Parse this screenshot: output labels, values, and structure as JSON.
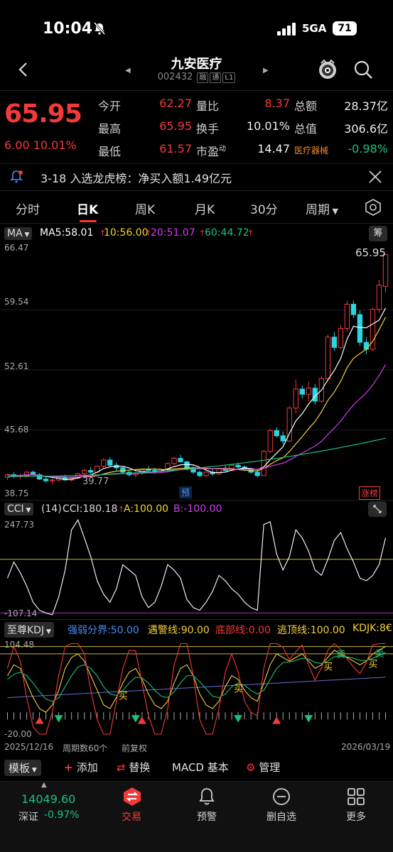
{
  "status_bar": {
    "time": "10:04",
    "network": "5GA",
    "battery": "71"
  },
  "header": {
    "title": "九安医疗",
    "code": "002432",
    "tags": [
      "融",
      "通",
      "L1"
    ]
  },
  "quote": {
    "price": "65.95",
    "change": "6.00",
    "change_pct": "10.01%",
    "fields": [
      {
        "label": "今开",
        "value": "62.27",
        "label2": "量比",
        "value2": "8.37",
        "label3": "总额",
        "value3": "28.37亿"
      },
      {
        "label": "最高",
        "value": "65.95",
        "label2": "换手",
        "value2": "10.01%",
        "label3": "总值",
        "value3": "306.6亿"
      },
      {
        "label": "最低",
        "value": "61.57",
        "label2": "市盈",
        "label2_sup": "动",
        "value2": "14.47",
        "label3": "医疗器械",
        "value3": "-0.98%"
      }
    ]
  },
  "notice": {
    "text": "3-18 入选龙虎榜：净买入额1.49亿元"
  },
  "tabs": [
    "分时",
    "日K",
    "周K",
    "月K",
    "30分",
    "周期"
  ],
  "active_tab": "日K",
  "ma": {
    "selector": "MA",
    "ma5": "MA5:58.01",
    "ma10": "10:56.00",
    "ma20": "20:51.07",
    "ma60": "60:44.72",
    "chip": "筹"
  },
  "main_axis": [
    "66.47",
    "59.54",
    "52.61",
    "45.68",
    "38.75"
  ],
  "price_marker": "65.95",
  "low_marker": "39.77",
  "pre_marker": "预",
  "limit_badge": "涨榜",
  "cci": {
    "selector": "CCI",
    "params": "(14)",
    "value": "CCI:180.18",
    "a": "A:100.00",
    "b": "B:-100.00",
    "axis_top": "247.73",
    "axis_bottom": "-107.14"
  },
  "kdj": {
    "selector": "至尊KDJ",
    "strength": "强弱分界:50.00",
    "warn": "遇警线:90.00",
    "bottom": "底部线:0.00",
    "top": "逃顶线:100.00",
    "kdjk": "KDJK:8€",
    "axis_top": "104.48",
    "axis_bottom": "-20.00",
    "buy_label": "买",
    "sell_label": "卖"
  },
  "meta": {
    "start_date": "2025/12/16",
    "period_count": "周期数60个",
    "adjust": "前复权",
    "end_date": "2026/03/19"
  },
  "toolbar": {
    "template": "模板",
    "add": "添加",
    "replace": "替换",
    "macd": "MACD 基本",
    "manage": "管理"
  },
  "tabbar": {
    "index_value": "14049.60",
    "index_name": "深证",
    "index_change": "-0.97%",
    "items": [
      "交易",
      "预警",
      "删自选",
      "更多"
    ]
  },
  "colors": {
    "up": "#f23a3a",
    "down": "#19c37d",
    "ma5": "#ffffff",
    "ma10": "#f2d23a",
    "ma20": "#d23af2",
    "ma60": "#19c37d"
  },
  "chart_data": [
    {
      "type": "candlestick",
      "title": "日K",
      "ylim": [
        38.75,
        66.47
      ],
      "candles": [
        [
          40.2,
          40.6,
          39.9,
          40.5
        ],
        [
          40.5,
          40.8,
          40.1,
          40.3
        ],
        [
          40.3,
          40.6,
          40.0,
          40.4
        ],
        [
          40.4,
          40.9,
          40.2,
          40.8
        ],
        [
          40.8,
          41.0,
          40.4,
          40.5
        ],
        [
          40.5,
          40.7,
          39.9,
          40.0
        ],
        [
          40.0,
          40.4,
          39.6,
          39.8
        ],
        [
          39.8,
          40.1,
          39.5,
          39.9
        ],
        [
          39.9,
          40.3,
          39.7,
          40.2
        ],
        [
          40.2,
          40.5,
          39.8,
          39.9
        ],
        [
          39.9,
          40.2,
          39.7,
          40.1
        ],
        [
          40.1,
          40.7,
          40.0,
          40.6
        ],
        [
          40.6,
          41.2,
          40.4,
          41.0
        ],
        [
          41.0,
          41.4,
          40.6,
          40.8
        ],
        [
          40.8,
          41.6,
          40.7,
          41.5
        ],
        [
          41.5,
          42.4,
          41.3,
          42.2
        ],
        [
          42.2,
          42.5,
          41.4,
          41.6
        ],
        [
          41.6,
          41.9,
          41.0,
          41.3
        ],
        [
          41.3,
          41.5,
          40.6,
          40.8
        ],
        [
          40.8,
          41.0,
          40.3,
          40.5
        ],
        [
          40.5,
          40.9,
          40.2,
          40.7
        ],
        [
          40.7,
          41.2,
          40.5,
          41.1
        ],
        [
          41.1,
          41.5,
          40.8,
          41.0
        ],
        [
          41.0,
          41.3,
          40.6,
          40.9
        ],
        [
          40.9,
          41.2,
          40.7,
          41.1
        ],
        [
          41.1,
          41.9,
          41.0,
          41.8
        ],
        [
          41.8,
          42.6,
          41.6,
          42.4
        ],
        [
          42.4,
          42.8,
          41.9,
          42.0
        ],
        [
          42.0,
          42.1,
          41.0,
          41.2
        ],
        [
          41.2,
          41.5,
          40.6,
          40.8
        ],
        [
          40.8,
          41.0,
          40.2,
          40.4
        ],
        [
          40.4,
          40.9,
          40.2,
          40.8
        ],
        [
          40.8,
          41.1,
          40.4,
          40.6
        ],
        [
          40.6,
          41.3,
          40.5,
          41.2
        ],
        [
          41.2,
          41.6,
          40.9,
          41.0
        ],
        [
          41.0,
          41.7,
          40.9,
          41.6
        ],
        [
          41.6,
          41.9,
          41.2,
          41.4
        ],
        [
          41.4,
          41.6,
          41.0,
          41.2
        ],
        [
          41.2,
          41.3,
          40.6,
          40.8
        ],
        [
          40.8,
          41.0,
          40.2,
          40.4
        ],
        [
          40.4,
          43.4,
          40.4,
          43.2
        ],
        [
          43.2,
          45.8,
          43.0,
          45.6
        ],
        [
          45.6,
          46.0,
          44.8,
          45.0
        ],
        [
          45.0,
          45.5,
          44.0,
          44.4
        ],
        [
          44.4,
          48.4,
          44.3,
          48.2
        ],
        [
          48.2,
          51.5,
          47.6,
          50.4
        ],
        [
          50.4,
          50.8,
          49.3,
          49.8
        ],
        [
          49.8,
          51.2,
          49.0,
          50.5
        ],
        [
          50.5,
          51.0,
          48.6,
          49.0
        ],
        [
          49.0,
          51.9,
          48.8,
          51.6
        ],
        [
          51.6,
          56.7,
          51.3,
          56.4
        ],
        [
          56.4,
          57.0,
          54.8,
          55.2
        ],
        [
          55.2,
          57.8,
          55.0,
          57.4
        ],
        [
          57.4,
          60.6,
          57.0,
          60.2
        ],
        [
          60.2,
          60.6,
          58.6,
          59.0
        ],
        [
          59.0,
          59.5,
          55.4,
          55.8
        ],
        [
          55.8,
          56.4,
          54.4,
          55.0
        ],
        [
          55.0,
          59.8,
          54.8,
          59.6
        ],
        [
          59.6,
          63.0,
          59.2,
          62.4
        ],
        [
          62.27,
          65.95,
          61.57,
          65.95
        ]
      ],
      "ma_lines": [
        "MA5",
        "MA10",
        "MA20",
        "MA60"
      ]
    },
    {
      "type": "line",
      "title": "CCI",
      "ylim": [
        -107.14,
        247.73
      ],
      "series": [
        {
          "name": "CCI",
          "values": [
            30,
            90,
            50,
            0,
            -60,
            -90,
            -100,
            -107,
            -40,
            60,
            210,
            247,
            180,
            110,
            20,
            -30,
            -60,
            -10,
            80,
            60,
            40,
            -40,
            -80,
            -60,
            0,
            80,
            60,
            30,
            -50,
            -80,
            -90,
            -60,
            -20,
            40,
            20,
            -10,
            -30,
            -60,
            -80,
            -90,
            230,
            240,
            120,
            60,
            110,
            210,
            180,
            130,
            60,
            40,
            100,
            170,
            200,
            140,
            90,
            30,
            20,
            40,
            80,
            180
          ]
        }
      ],
      "lines": [
        {
          "name": "A",
          "value": 100
        },
        {
          "name": "B",
          "value": -100
        }
      ]
    },
    {
      "type": "line",
      "title": "至尊KDJ",
      "ylim": [
        -20,
        104.48
      ],
      "series": [
        {
          "name": "K",
          "values": [
            60,
            75,
            70,
            50,
            30,
            15,
            10,
            20,
            40,
            70,
            85,
            90,
            80,
            60,
            40,
            20,
            15,
            30,
            50,
            65,
            70,
            55,
            35,
            20,
            15,
            25,
            50,
            70,
            75,
            60,
            35,
            20,
            15,
            25,
            45,
            60,
            55,
            40,
            30,
            25,
            50,
            75,
            90,
            85,
            80,
            85,
            90,
            80,
            70,
            75,
            85,
            95,
            90,
            85,
            80,
            75,
            80,
            90,
            95,
            100
          ]
        },
        {
          "name": "D",
          "values": [
            55,
            62,
            65,
            60,
            50,
            38,
            28,
            25,
            30,
            45,
            60,
            72,
            75,
            70,
            60,
            45,
            35,
            33,
            40,
            50,
            58,
            57,
            50,
            40,
            32,
            30,
            38,
            50,
            60,
            60,
            52,
            42,
            32,
            30,
            35,
            45,
            50,
            47,
            40,
            35,
            40,
            55,
            70,
            78,
            79,
            81,
            84,
            83,
            78,
            77,
            80,
            86,
            87,
            86,
            84,
            81,
            81,
            84,
            88,
            92
          ]
        },
        {
          "name": "J",
          "values": [
            70,
            100,
            80,
            30,
            -10,
            -20,
            -20,
            10,
            60,
            100,
            104,
            104,
            90,
            40,
            0,
            -20,
            -20,
            25,
            70,
            95,
            94,
            50,
            5,
            -20,
            -20,
            15,
            74,
            104,
            104,
            60,
            0,
            -20,
            -20,
            15,
            65,
            90,
            65,
            25,
            10,
            5,
            70,
            104,
            104,
            99,
            82,
            93,
            102,
            74,
            54,
            71,
            95,
            104,
            96,
            83,
            72,
            63,
            78,
            102,
            104,
            104
          ]
        }
      ]
    }
  ]
}
